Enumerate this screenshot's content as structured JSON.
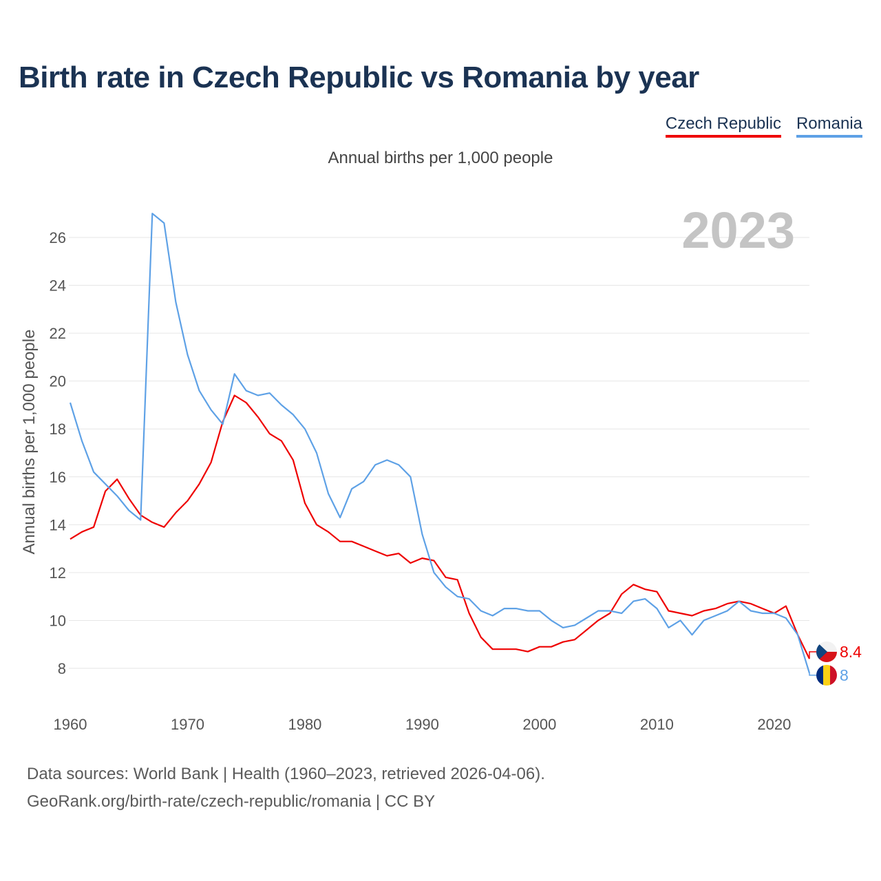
{
  "title": "Birth rate in Czech Republic vs Romania by year",
  "subtitle": "Annual births per 1,000 people",
  "legend": [
    {
      "label": "Czech Republic",
      "color": "#ee0000"
    },
    {
      "label": "Romania",
      "color": "#5ea1e6"
    }
  ],
  "footer": {
    "line1": "Data sources: World Bank | Health (1960–2023, retrieved 2026-04-06).",
    "line2": "GeoRank.org/birth-rate/czech-republic/romania | CC BY"
  },
  "chart_data": {
    "type": "line",
    "title": "Birth rate in Czech Republic vs Romania by year",
    "ylabel": "Annual births per 1,000 people",
    "xlabel": "",
    "xlim": [
      1960,
      2023
    ],
    "ylim": [
      7,
      27.5
    ],
    "grid": true,
    "year_label": "2023",
    "x_ticks": [
      1960,
      1970,
      1980,
      1990,
      2000,
      2010,
      2020
    ],
    "y_ticks": [
      8,
      10,
      12,
      14,
      16,
      18,
      20,
      22,
      24,
      26
    ],
    "x": [
      1960,
      1961,
      1962,
      1963,
      1964,
      1965,
      1966,
      1967,
      1968,
      1969,
      1970,
      1971,
      1972,
      1973,
      1974,
      1975,
      1976,
      1977,
      1978,
      1979,
      1980,
      1981,
      1982,
      1983,
      1984,
      1985,
      1986,
      1987,
      1988,
      1989,
      1990,
      1991,
      1992,
      1993,
      1994,
      1995,
      1996,
      1997,
      1998,
      1999,
      2000,
      2001,
      2002,
      2003,
      2004,
      2005,
      2006,
      2007,
      2008,
      2009,
      2010,
      2011,
      2012,
      2013,
      2014,
      2015,
      2016,
      2017,
      2018,
      2019,
      2020,
      2021,
      2022,
      2023
    ],
    "series": [
      {
        "name": "Czech Republic",
        "color": "#ee0000",
        "end_label": "8.4",
        "values": [
          13.4,
          13.7,
          13.9,
          15.4,
          15.9,
          15.1,
          14.4,
          14.1,
          13.9,
          14.5,
          15.0,
          15.7,
          16.6,
          18.3,
          19.4,
          19.1,
          18.5,
          17.8,
          17.5,
          16.7,
          14.9,
          14.0,
          13.7,
          13.3,
          13.3,
          13.1,
          12.9,
          12.7,
          12.8,
          12.4,
          12.6,
          12.5,
          11.8,
          11.7,
          10.3,
          9.3,
          8.8,
          8.8,
          8.8,
          8.7,
          8.9,
          8.9,
          9.1,
          9.2,
          9.6,
          10.0,
          10.3,
          11.1,
          11.5,
          11.3,
          11.2,
          10.4,
          10.3,
          10.2,
          10.4,
          10.5,
          10.7,
          10.8,
          10.7,
          10.5,
          10.3,
          10.6,
          9.4,
          8.4
        ]
      },
      {
        "name": "Romania",
        "color": "#5ea1e6",
        "end_label": "8",
        "values": [
          19.1,
          17.5,
          16.2,
          15.7,
          15.2,
          14.6,
          14.2,
          27.0,
          26.6,
          23.3,
          21.1,
          19.6,
          18.8,
          18.2,
          20.3,
          19.6,
          19.4,
          19.5,
          19.0,
          18.6,
          18.0,
          17.0,
          15.3,
          14.3,
          15.5,
          15.8,
          16.5,
          16.7,
          16.5,
          16.0,
          13.6,
          12.0,
          11.4,
          11.0,
          10.9,
          10.4,
          10.2,
          10.5,
          10.5,
          10.4,
          10.4,
          10.0,
          9.7,
          9.8,
          10.1,
          10.4,
          10.4,
          10.3,
          10.8,
          10.9,
          10.5,
          9.7,
          10.0,
          9.4,
          10.0,
          10.2,
          10.4,
          10.8,
          10.4,
          10.3,
          10.3,
          10.1,
          9.4,
          7.8
        ]
      }
    ]
  }
}
